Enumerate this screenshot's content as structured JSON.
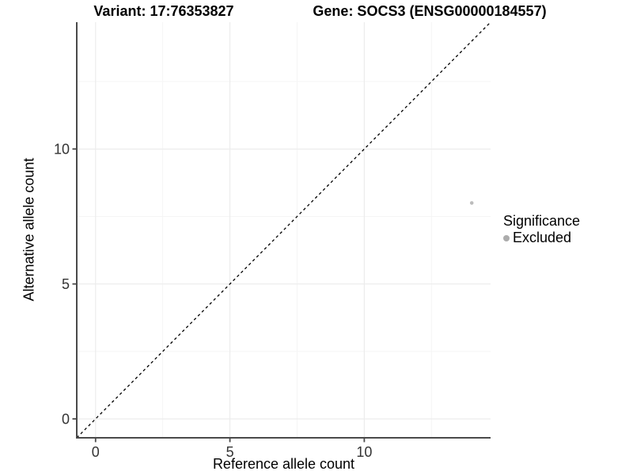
{
  "titles": {
    "variant": "Variant: 17:76353827",
    "gene": "Gene: SOCS3 (ENSG00000184557)"
  },
  "chart_data": {
    "type": "scatter",
    "xlabel": "Reference allele count",
    "ylabel": "Alternative allele count",
    "xlim": [
      -0.7,
      14.7
    ],
    "ylim": [
      -0.7,
      14.7
    ],
    "x_major_ticks": [
      0,
      5,
      10
    ],
    "y_major_ticks": [
      0,
      5,
      10
    ],
    "x_minor_ticks": [
      2.5,
      7.5,
      12.5
    ],
    "y_minor_ticks": [
      2.5,
      7.5,
      12.5
    ],
    "grid": true,
    "legend_position": "right",
    "series": [
      {
        "name": "Excluded",
        "points": [
          {
            "x": 14,
            "y": 8
          }
        ],
        "color": "#bcbcbc"
      }
    ],
    "identity_line": {
      "style": "dashed",
      "slope": 1,
      "intercept": 0,
      "color": "#000000"
    },
    "legend": {
      "title": "Significance",
      "entries": [
        {
          "label": "Excluded",
          "color": "#acacac"
        }
      ]
    }
  },
  "colors": {
    "axis_line": "#4a4a4a",
    "tick_mark": "#4a4a4a",
    "tick_label": "#333333",
    "grid_major": "#ececec",
    "grid_minor": "#f5f5f5",
    "background": "#ffffff"
  }
}
